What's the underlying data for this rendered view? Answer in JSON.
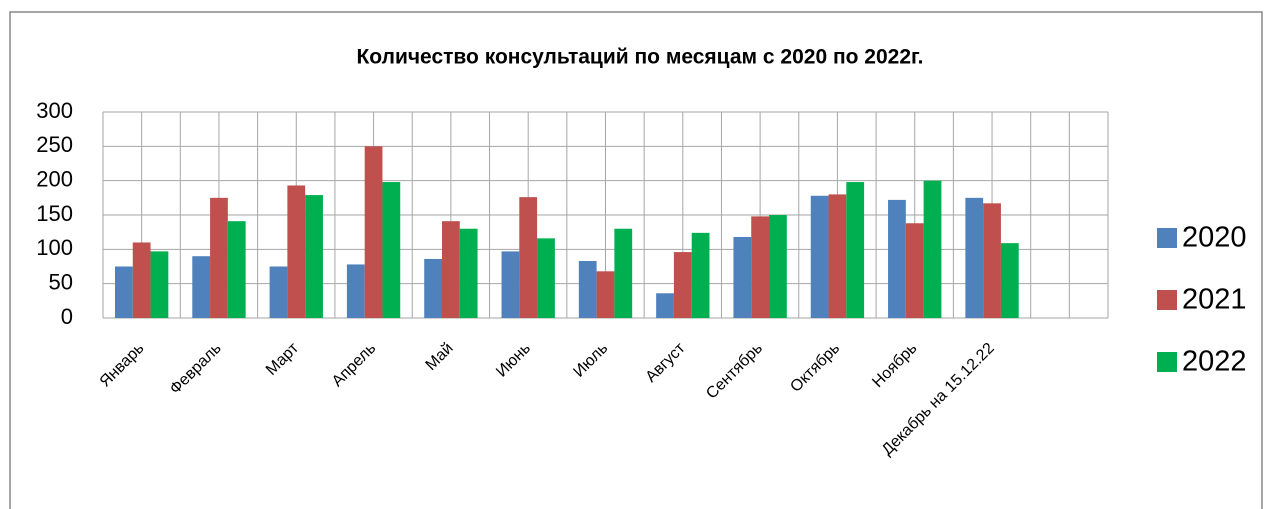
{
  "chart_data": {
    "type": "bar",
    "title": "Количество консультаций по месяцам с 2020 по 2022г.",
    "categories": [
      "Январь",
      "Февраль",
      "Март",
      "Апрель",
      "Май",
      "Июнь",
      "Июль",
      "Август",
      "Сентябрь",
      "Октябрь",
      "Ноябрь",
      "Декабрь на 15.12.22",
      null
    ],
    "series": [
      {
        "name": "2020",
        "color": "#4f81bd",
        "values": [
          75,
          90,
          75,
          78,
          86,
          97,
          83,
          36,
          118,
          178,
          172,
          175,
          null
        ]
      },
      {
        "name": "2021",
        "color": "#c0504d",
        "values": [
          110,
          175,
          193,
          250,
          141,
          176,
          68,
          96,
          148,
          180,
          138,
          167,
          null
        ]
      },
      {
        "name": "2022",
        "color": "#00b050",
        "values": [
          97,
          141,
          179,
          198,
          130,
          116,
          130,
          124,
          150,
          198,
          200,
          109,
          null
        ]
      }
    ],
    "ylim": [
      0,
      300
    ],
    "yticks": [
      0,
      50,
      100,
      150,
      200,
      250,
      300
    ],
    "grid": true,
    "legend": "right"
  }
}
